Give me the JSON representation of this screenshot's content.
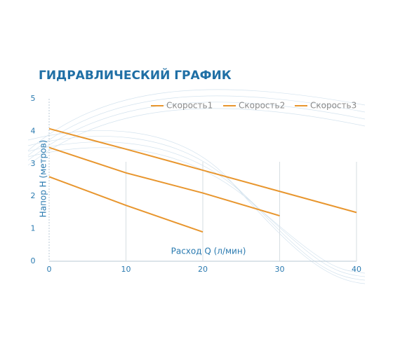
{
  "chart_data": {
    "type": "line",
    "title": "ГИДРАВЛИЧЕСКИЙ ГРАФИК",
    "x_label": "Расход Q (л/мин)",
    "y_label": "Напор Н (метров)",
    "xlim": [
      0,
      40
    ],
    "ylim": [
      0,
      5
    ],
    "xticks": [
      0,
      10,
      20,
      30,
      40
    ],
    "yticks": [
      0,
      1,
      2,
      3,
      4,
      5
    ],
    "grid": true,
    "legend": "top-right",
    "series": [
      {
        "name": "Скорость1",
        "color": "#e8962e",
        "x": [
          0,
          10,
          20
        ],
        "values": [
          2.6,
          1.72,
          0.9
        ]
      },
      {
        "name": "Скорость2",
        "color": "#e8962e",
        "x": [
          0,
          10,
          20,
          30
        ],
        "values": [
          3.5,
          2.72,
          2.1,
          1.4
        ]
      },
      {
        "name": "Скорость3",
        "color": "#e8962e",
        "x": [
          0,
          10,
          20,
          30,
          40
        ],
        "values": [
          4.08,
          3.45,
          2.8,
          2.15,
          1.5
        ]
      }
    ]
  }
}
